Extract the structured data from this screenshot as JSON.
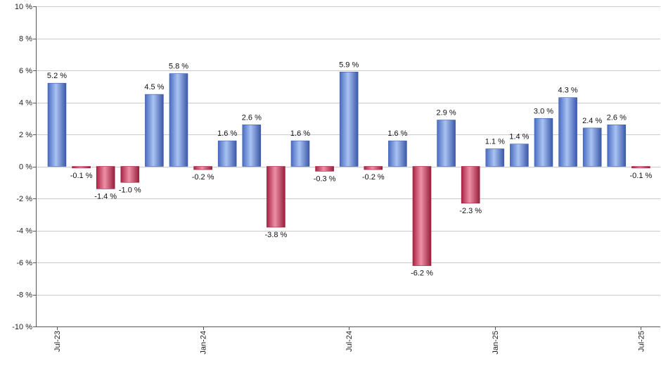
{
  "chart_data": {
    "type": "bar",
    "categories": [
      "Jul-23",
      "Aug-23",
      "Sep-23",
      "Oct-23",
      "Nov-23",
      "Dec-23",
      "Jan-24",
      "Feb-24",
      "Mar-24",
      "Apr-24",
      "May-24",
      "Jun-24",
      "Jul-24",
      "Aug-24",
      "Sep-24",
      "Oct-24",
      "Nov-24",
      "Dec-24",
      "Jan-25",
      "Feb-25",
      "Mar-25",
      "Apr-25",
      "May-25",
      "Jun-25",
      "Jul-25"
    ],
    "values": [
      5.2,
      -0.1,
      -1.4,
      -1.0,
      4.5,
      5.8,
      -0.2,
      1.6,
      2.6,
      -3.8,
      1.6,
      -0.3,
      5.9,
      -0.2,
      1.6,
      -6.2,
      2.9,
      -2.3,
      1.1,
      1.4,
      3.0,
      4.3,
      2.4,
      2.6,
      -0.1
    ],
    "data_labels": [
      "5.2 %",
      "-0.1 %",
      "-1.4 %",
      "-1.0 %",
      "4.5 %",
      "5.8 %",
      "-0.2 %",
      "1.6 %",
      "2.6 %",
      "-3.8 %",
      "1.6 %",
      "-0.3 %",
      "5.9 %",
      "-0.2 %",
      "1.6 %",
      "-6.2 %",
      "2.9 %",
      "-2.3 %",
      "1.1 %",
      "1.4 %",
      "3.0 %",
      "4.3 %",
      "2.4 %",
      "2.6 %",
      "-0.1 %"
    ],
    "ylim": [
      -10,
      10
    ],
    "y_ticks": [
      10,
      8,
      6,
      4,
      2,
      0,
      -2,
      -4,
      -6,
      -8,
      -10
    ],
    "y_tick_labels": [
      "10 %",
      "8 %",
      "6 %",
      "4 %",
      "2 %",
      "0 %",
      "-2 %",
      "-4 %",
      "-6 %",
      "-8 %",
      "-10 %"
    ],
    "x_tick_labels": [
      "Jul-23",
      "Jan-24",
      "Jul-24",
      "Jan-25",
      "Jul-25"
    ],
    "x_tick_label_indices": [
      0,
      6,
      12,
      18,
      24
    ],
    "grid": true,
    "legend": "none",
    "colors": {
      "positive": "#7b9de0",
      "positive_dark": "#3f5fae",
      "negative": "#d8506e",
      "negative_dark": "#9c1e3c",
      "grid": "#cccccc",
      "axis": "#555555"
    }
  }
}
